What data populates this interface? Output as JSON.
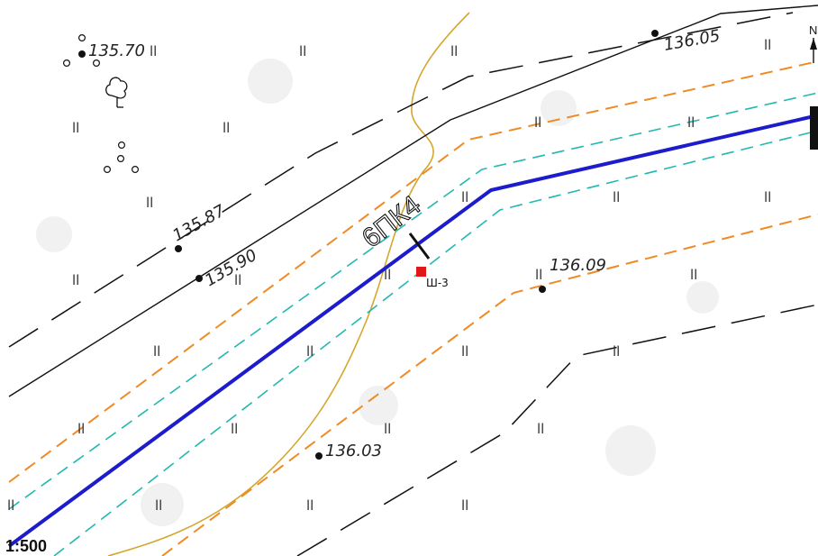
{
  "map": {
    "scale_label": "1:500",
    "north_label": "N",
    "picket_label": "6ПК4",
    "well_label": "Ш-3",
    "elevations": [
      {
        "id": "elev-135-70",
        "label": "135.70"
      },
      {
        "id": "elev-136-05",
        "label": "136.05"
      },
      {
        "id": "elev-135-87",
        "label": "135.87"
      },
      {
        "id": "elev-135-90",
        "label": "135.90"
      },
      {
        "id": "elev-136-09",
        "label": "136.09"
      },
      {
        "id": "elev-136-03",
        "label": "136.03"
      }
    ],
    "grass_symbol": "ll",
    "colors": {
      "pipeline": "#1c1ccc",
      "protection_zone": "#f08a24",
      "inner_zone": "#22b8b0",
      "contour": "#d4a72c",
      "road_edge": "#111111",
      "well": "#e01818"
    }
  }
}
